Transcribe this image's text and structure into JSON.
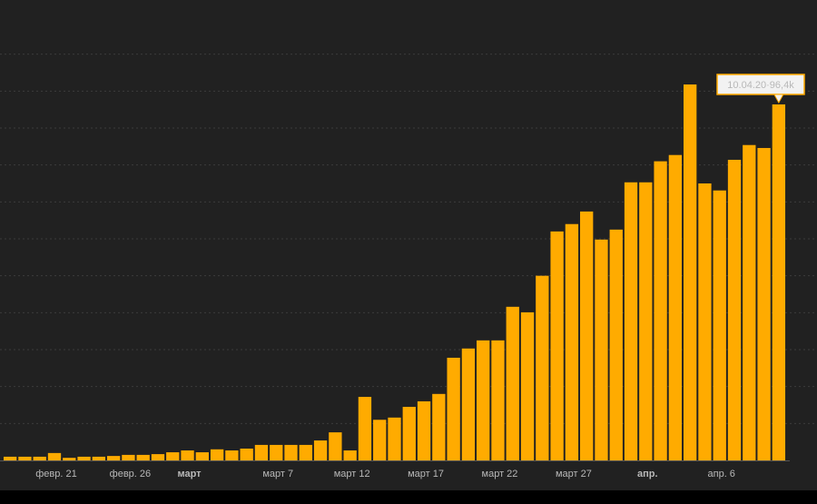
{
  "chart_data": {
    "type": "bar",
    "annotation": "10.04.20·96,4k",
    "categories": [
      null,
      null,
      null,
      "февр. 21",
      null,
      null,
      null,
      null,
      "февр. 26",
      null,
      null,
      null,
      "март",
      null,
      null,
      null,
      null,
      null,
      "март 7",
      null,
      null,
      null,
      null,
      "март 12",
      null,
      null,
      null,
      null,
      "март 17",
      null,
      null,
      null,
      null,
      "март 22",
      null,
      null,
      null,
      null,
      "март 27",
      null,
      null,
      null,
      null,
      "апр.",
      null,
      null,
      null,
      null,
      "апр. 6",
      null,
      null,
      null,
      null
    ],
    "values": [
      1000,
      1000,
      1000,
      2000,
      700,
      1000,
      1000,
      1200,
      1500,
      1500,
      1700,
      2200,
      2700,
      2200,
      3000,
      2700,
      3200,
      4200,
      4200,
      4200,
      4200,
      5400,
      7600,
      2700,
      17200,
      11000,
      11600,
      14500,
      16000,
      18000,
      27800,
      30300,
      32500,
      32500,
      41600,
      40100,
      50000,
      62000,
      64000,
      67400,
      59800,
      62500,
      75300,
      75300,
      81000,
      82700,
      101800,
      75000,
      73100,
      81400,
      85400,
      84600,
      96400
    ],
    "color": "#ffab00",
    "ylim": [
      0,
      120000
    ],
    "yticks": [
      10000,
      20000,
      30000,
      40000,
      50000,
      60000,
      70000,
      80000,
      90000,
      100000,
      110000
    ],
    "grid": true
  }
}
